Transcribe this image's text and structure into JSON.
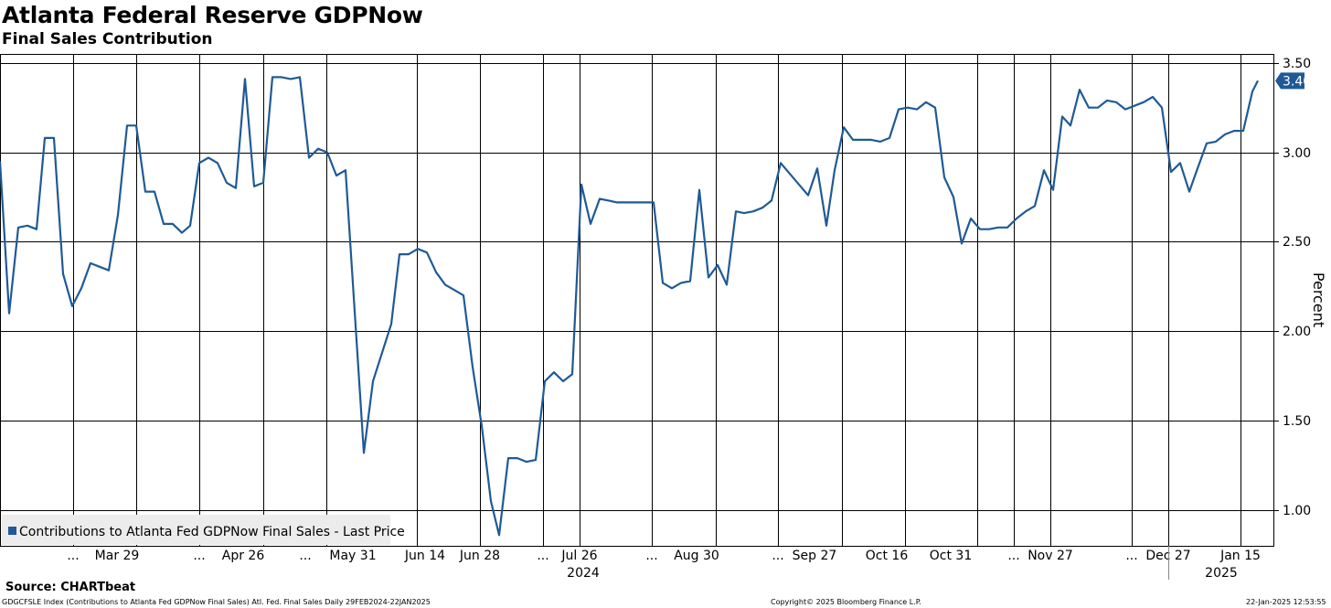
{
  "header": {
    "title": "Atlanta Federal Reserve GDPNow",
    "subtitle": "Final Sales Contribution"
  },
  "footer": {
    "source": "Source: CHARTbeat",
    "ticker": "GDGCFSLE Index (Contributions to Atlanta Fed GDPNow Final Sales) Atl. Fed. Final Sales  Daily 29FEB2024-22JAN2025",
    "copyright": "Copyright© 2025 Bloomberg Finance L.P.",
    "timestamp": "22-Jan-2025 12:53:55"
  },
  "chart_data": {
    "type": "line",
    "title": "Atlanta Federal Reserve GDPNow",
    "subtitle": "Final Sales Contribution",
    "ylabel": "Percent",
    "ylim": [
      0.8,
      3.55
    ],
    "yticks": [
      1.0,
      1.5,
      2.0,
      2.5,
      3.0,
      3.5
    ],
    "ytick_labels": [
      "1.00",
      "1.50",
      "2.00",
      "2.50",
      "3.00",
      "3.50"
    ],
    "grid": true,
    "legend_position": "bottom-left",
    "x_range": [
      0,
      1393
    ],
    "x_tick_labels": [
      {
        "x": 80,
        "label": "..."
      },
      {
        "x": 128,
        "label": "Mar 29"
      },
      {
        "x": 218,
        "label": "..."
      },
      {
        "x": 266,
        "label": "Apr 26"
      },
      {
        "x": 334,
        "label": "..."
      },
      {
        "x": 386,
        "label": "May 31"
      },
      {
        "x": 465,
        "label": "Jun 14"
      },
      {
        "x": 525,
        "label": "Jun 28"
      },
      {
        "x": 594,
        "label": "..."
      },
      {
        "x": 634,
        "label": "Jul 26"
      },
      {
        "x": 713,
        "label": "..."
      },
      {
        "x": 762,
        "label": "Aug 30"
      },
      {
        "x": 851,
        "label": "..."
      },
      {
        "x": 891,
        "label": "Sep 27"
      },
      {
        "x": 970,
        "label": "Oct 16"
      },
      {
        "x": 1040,
        "label": "Oct 31"
      },
      {
        "x": 1109,
        "label": "..."
      },
      {
        "x": 1149,
        "label": "Nov 27"
      },
      {
        "x": 1238,
        "label": "..."
      },
      {
        "x": 1278,
        "label": "Dec 27"
      },
      {
        "x": 1357,
        "label": "Jan 15"
      }
    ],
    "x_gridlines": [
      80,
      149,
      218,
      288,
      357,
      456,
      525,
      594,
      634,
      713,
      783,
      851,
      921,
      990,
      1069,
      1109,
      1149,
      1238,
      1278,
      1357
    ],
    "year_labels": [
      {
        "x": 638,
        "label": "2024"
      },
      {
        "x": 1336,
        "label": "2025"
      }
    ],
    "year_divider_x": 1278,
    "series": [
      {
        "name": "Contributions to Atlanta Fed GDPNow Final Sales - Last Price",
        "color": "#1f5a96",
        "last_value": "3.40",
        "x": [
          0,
          10,
          20,
          30,
          40,
          49,
          59,
          69,
          79,
          89,
          99,
          109,
          119,
          129,
          139,
          149,
          159,
          169,
          179,
          189,
          199,
          208,
          218,
          228,
          238,
          248,
          258,
          268,
          278,
          288,
          298,
          308,
          318,
          328,
          338,
          348,
          358,
          368,
          378,
          388,
          398,
          408,
          418,
          428,
          437,
          447,
          457,
          467,
          477,
          487,
          497,
          507,
          517,
          527,
          537,
          546,
          556,
          566,
          576,
          586,
          596,
          606,
          616,
          626,
          636,
          646,
          656,
          666,
          675,
          685,
          695,
          705,
          715,
          725,
          735,
          745,
          755,
          765,
          775,
          785,
          795,
          805,
          814,
          824,
          834,
          844,
          854,
          864,
          874,
          884,
          894,
          904,
          913,
          923,
          933,
          943,
          953,
          963,
          973,
          983,
          993,
          1003,
          1013,
          1023,
          1033,
          1043,
          1052,
          1062,
          1072,
          1082,
          1092,
          1102,
          1112,
          1122,
          1132,
          1142,
          1152,
          1162,
          1171,
          1181,
          1191,
          1201,
          1211,
          1221,
          1231,
          1241,
          1251,
          1261,
          1271,
          1281,
          1291,
          1301,
          1310,
          1320,
          1330,
          1340,
          1350,
          1360,
          1370,
          1376
        ],
        "values": [
          2.95,
          2.1,
          2.58,
          2.59,
          2.57,
          3.08,
          3.08,
          2.32,
          2.14,
          2.24,
          2.38,
          2.36,
          2.34,
          2.65,
          3.15,
          3.15,
          2.78,
          2.78,
          2.6,
          2.6,
          2.55,
          2.59,
          2.94,
          2.97,
          2.94,
          2.83,
          2.8,
          3.41,
          2.81,
          2.83,
          3.42,
          3.42,
          3.41,
          3.42,
          2.97,
          3.02,
          3.0,
          2.87,
          2.9,
          2.11,
          1.32,
          1.72,
          1.88,
          2.04,
          2.43,
          2.43,
          2.46,
          2.44,
          2.33,
          2.26,
          2.23,
          2.2,
          1.8,
          1.47,
          1.05,
          0.86,
          1.29,
          1.29,
          1.27,
          1.28,
          1.72,
          1.77,
          1.72,
          1.76,
          2.82,
          2.6,
          2.74,
          2.73,
          2.72,
          2.72,
          2.72,
          2.72,
          2.72,
          2.27,
          2.24,
          2.27,
          2.28,
          2.79,
          2.3,
          2.37,
          2.26,
          2.67,
          2.66,
          2.67,
          2.69,
          2.73,
          2.94,
          2.88,
          2.82,
          2.76,
          2.91,
          2.59,
          2.9,
          3.14,
          3.07,
          3.07,
          3.07,
          3.06,
          3.08,
          3.24,
          3.25,
          3.24,
          3.28,
          3.25,
          2.86,
          2.75,
          2.49,
          2.63,
          2.57,
          2.57,
          2.58,
          2.58,
          2.63,
          2.67,
          2.7,
          2.9,
          2.79,
          3.2,
          3.15,
          3.35,
          3.25,
          3.25,
          3.29,
          3.28,
          3.24,
          3.26,
          3.28,
          3.31,
          3.25,
          2.89,
          2.94,
          2.78,
          2.91,
          3.05,
          3.06,
          3.1,
          3.12,
          3.12,
          3.34,
          3.4
        ]
      }
    ]
  }
}
